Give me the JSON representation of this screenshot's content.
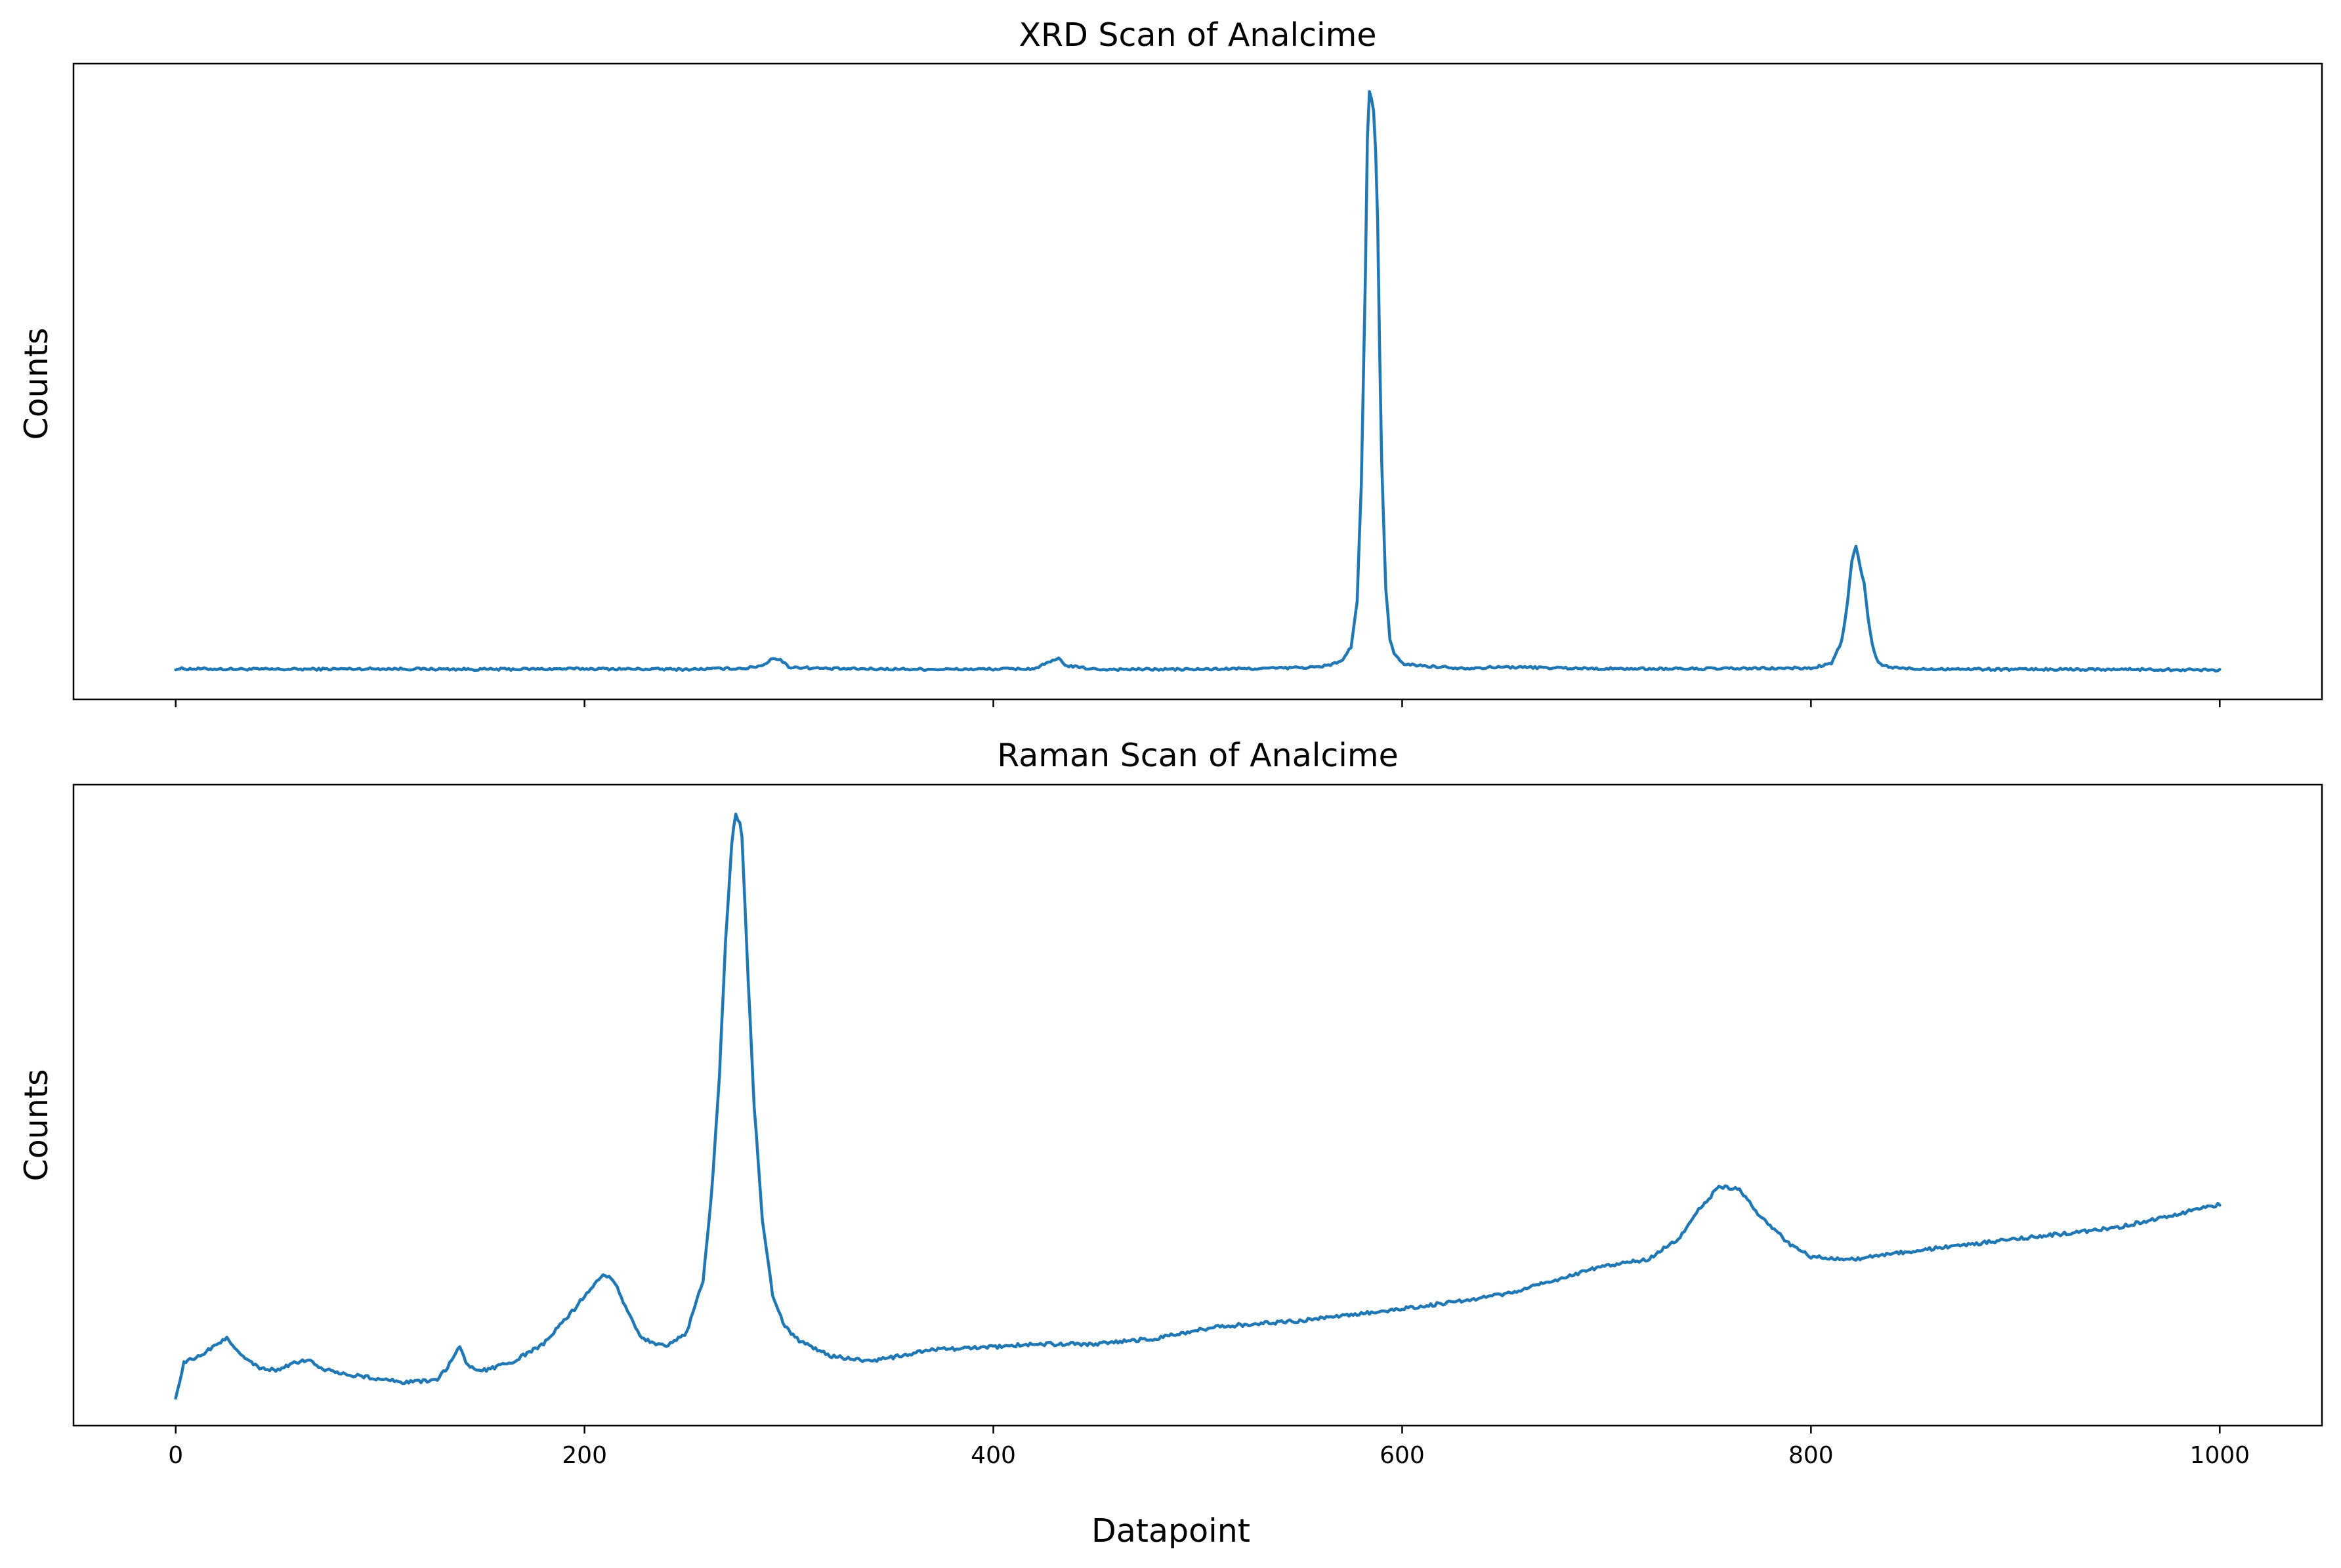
{
  "figure": {
    "xlabel": "Datapoint",
    "line_color": "#1f77b4"
  },
  "chart_data": [
    {
      "type": "line",
      "title": "XRD Scan of Analcime",
      "xlabel": "",
      "ylabel": "Counts",
      "xlim": [
        -50,
        1050
      ],
      "ylim": [
        -0.05,
        1.05
      ],
      "xticks": [
        0,
        200,
        400,
        600,
        800,
        1000
      ],
      "show_x_tick_labels": false,
      "show_y_ticks": false,
      "grid": false,
      "series": [
        {
          "values_note_x": [
            0,
            1000
          ],
          "x": [
            0,
            50,
            100,
            150,
            200,
            250,
            280,
            288,
            292,
            296,
            300,
            320,
            380,
            420,
            428,
            432,
            436,
            450,
            500,
            540,
            560,
            570,
            575,
            578,
            580,
            582,
            583,
            584,
            585,
            586,
            587,
            588,
            589,
            590,
            592,
            594,
            596,
            600,
            610,
            630,
            650,
            700,
            750,
            800,
            810,
            815,
            818,
            820,
            822,
            824,
            826,
            828,
            830,
            832,
            834,
            840,
            850,
            900,
            950,
            1000
          ],
          "y": [
            0.003,
            0.002,
            0.003,
            0.002,
            0.003,
            0.002,
            0.004,
            0.01,
            0.022,
            0.018,
            0.006,
            0.003,
            0.002,
            0.003,
            0.015,
            0.02,
            0.008,
            0.002,
            0.002,
            0.004,
            0.006,
            0.015,
            0.04,
            0.12,
            0.32,
            0.68,
            0.92,
            1.0,
            0.99,
            0.97,
            0.9,
            0.78,
            0.55,
            0.36,
            0.14,
            0.055,
            0.03,
            0.012,
            0.008,
            0.004,
            0.006,
            0.003,
            0.003,
            0.004,
            0.012,
            0.05,
            0.12,
            0.19,
            0.215,
            0.18,
            0.15,
            0.09,
            0.045,
            0.02,
            0.01,
            0.005,
            0.003,
            0.002,
            0.002,
            0.001
          ]
        }
      ]
    },
    {
      "type": "line",
      "title": "Raman Scan of Analcime",
      "xlabel": "Datapoint",
      "ylabel": "Counts",
      "xlim": [
        -50,
        1050
      ],
      "ylim": [
        -0.05,
        1.05
      ],
      "xticks": [
        0,
        200,
        400,
        600,
        800,
        1000
      ],
      "show_x_tick_labels": true,
      "show_y_ticks": false,
      "grid": false,
      "series": [
        {
          "x": [
            0,
            2,
            4,
            10,
            20,
            25,
            30,
            40,
            50,
            60,
            65,
            70,
            80,
            100,
            110,
            120,
            128,
            133,
            136,
            139,
            142,
            146,
            152,
            165,
            180,
            195,
            205,
            210,
            215,
            220,
            228,
            240,
            250,
            258,
            262,
            266,
            269,
            272,
            274,
            275,
            276,
            277,
            278,
            280,
            283,
            287,
            292,
            298,
            305,
            320,
            340,
            370,
            400,
            420,
            450,
            480,
            510,
            550,
            600,
            650,
            680,
            700,
            720,
            735,
            745,
            755,
            765,
            775,
            790,
            800,
            820,
            850,
            900,
            950,
            1000
          ],
          "y": [
            0.0,
            0.025,
            0.06,
            0.065,
            0.09,
            0.1,
            0.08,
            0.05,
            0.045,
            0.06,
            0.062,
            0.05,
            0.04,
            0.03,
            0.025,
            0.025,
            0.03,
            0.05,
            0.07,
            0.085,
            0.06,
            0.045,
            0.045,
            0.06,
            0.09,
            0.15,
            0.195,
            0.21,
            0.195,
            0.155,
            0.1,
            0.085,
            0.11,
            0.2,
            0.34,
            0.55,
            0.78,
            0.95,
            1.0,
            0.99,
            0.985,
            0.96,
            0.88,
            0.72,
            0.5,
            0.3,
            0.175,
            0.12,
            0.095,
            0.07,
            0.06,
            0.08,
            0.085,
            0.09,
            0.09,
            0.1,
            0.12,
            0.13,
            0.15,
            0.175,
            0.205,
            0.225,
            0.235,
            0.27,
            0.32,
            0.36,
            0.355,
            0.31,
            0.26,
            0.24,
            0.235,
            0.25,
            0.27,
            0.29,
            0.33
          ]
        }
      ]
    }
  ]
}
